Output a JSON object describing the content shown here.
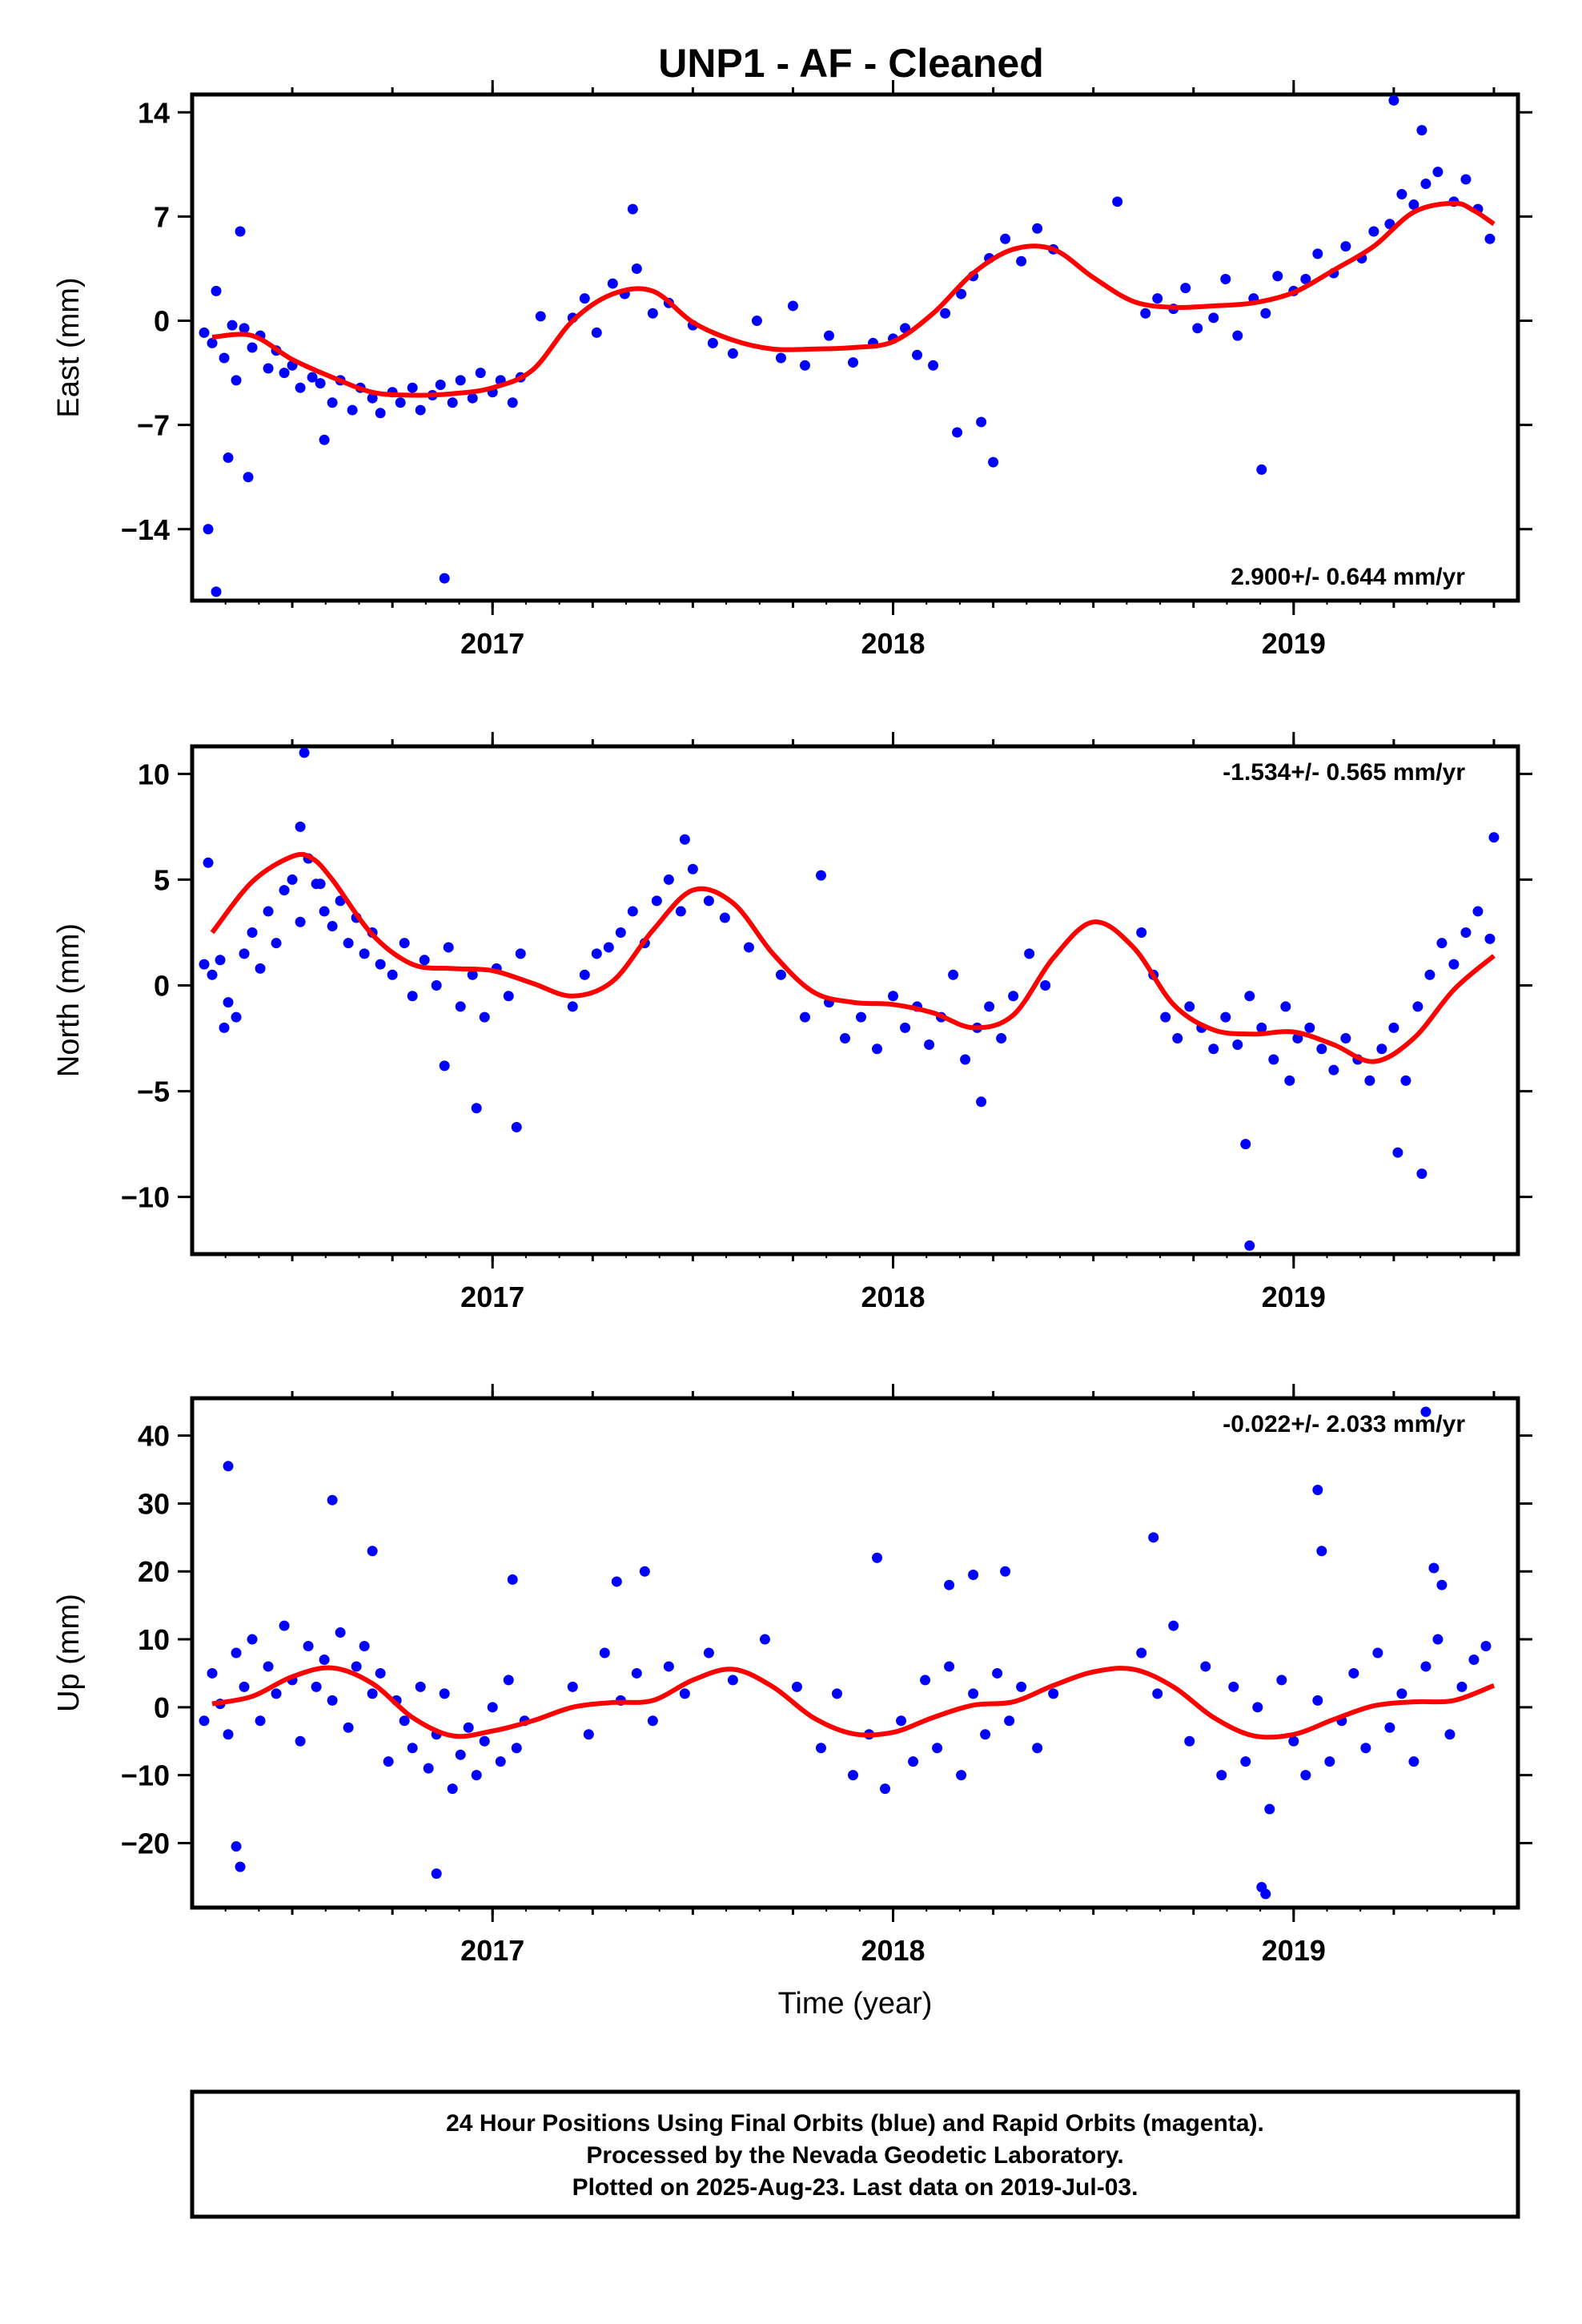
{
  "title": "UNP1  - AF - Cleaned",
  "footer": {
    "lines": [
      "24 Hour Positions Using Final Orbits (blue) and Rapid Orbits (magenta).",
      "Processed by the Nevada Geodetic Laboratory.",
      "Plotted on 2025-Aug-23. Last data on 2019-Jul-03."
    ]
  },
  "colors": {
    "final_orbits": "#0000ff",
    "rapid_orbits": "#ff00ff",
    "model_fit": "#ff0000",
    "frame": "#000000"
  },
  "chart_data": [
    {
      "type": "scatter",
      "name": "east",
      "ylabel": "East (mm)",
      "xlabel": "",
      "xlim": [
        2016.25,
        2019.56
      ],
      "ylim": [
        -18.8,
        15.2
      ],
      "xticks": [
        "2017",
        "2018",
        "2019"
      ],
      "yticks": [
        14,
        7,
        0,
        -7,
        -14
      ],
      "ytick_labels": [
        "14",
        "7",
        "0",
        "−7",
        "−14"
      ],
      "rate_text": "2.900+/- 0.644 mm/yr",
      "rate_position": "bottom-right",
      "grid": false,
      "fit": {
        "x": [
          2016.3,
          2016.4,
          2016.5,
          2016.6,
          2016.7,
          2016.8,
          2016.9,
          2017.0,
          2017.1,
          2017.2,
          2017.3,
          2017.4,
          2017.5,
          2017.6,
          2017.7,
          2017.8,
          2017.9,
          2018.0,
          2018.1,
          2018.2,
          2018.3,
          2018.4,
          2018.5,
          2018.6,
          2018.7,
          2018.8,
          2018.9,
          2019.0,
          2019.1,
          2019.2,
          2019.3,
          2019.4,
          2019.45,
          2019.5
        ],
        "y": [
          -1.1,
          -1.0,
          -2.6,
          -3.8,
          -4.8,
          -5.0,
          -4.9,
          -4.5,
          -3.3,
          0.0,
          1.8,
          2.0,
          -0.1,
          -1.3,
          -1.9,
          -1.9,
          -1.8,
          -1.4,
          0.5,
          3.2,
          4.8,
          4.8,
          2.9,
          1.3,
          0.9,
          1.0,
          1.2,
          1.9,
          3.4,
          5.0,
          7.3,
          7.9,
          7.4,
          6.5
        ]
      },
      "points": {
        "x": [
          2016.28,
          2016.3,
          2016.31,
          2016.33,
          2016.35,
          2016.36,
          2016.38,
          2016.4,
          2016.42,
          2016.44,
          2016.46,
          2016.48,
          2016.5,
          2016.52,
          2016.55,
          2016.57,
          2016.6,
          2016.62,
          2016.65,
          2016.67,
          2016.7,
          2016.72,
          2016.75,
          2016.77,
          2016.8,
          2016.82,
          2016.85,
          2016.87,
          2016.9,
          2016.92,
          2016.95,
          2016.97,
          2017.0,
          2017.02,
          2017.05,
          2017.07,
          2017.2,
          2017.23,
          2017.26,
          2017.3,
          2017.33,
          2017.36,
          2017.4,
          2017.44,
          2017.5,
          2017.55,
          2017.6,
          2017.66,
          2017.72,
          2017.78,
          2017.84,
          2017.9,
          2017.95,
          2018.0,
          2018.03,
          2018.06,
          2018.1,
          2018.13,
          2018.17,
          2018.2,
          2018.24,
          2018.28,
          2018.32,
          2018.36,
          2018.4,
          2018.63,
          2018.66,
          2018.7,
          2018.73,
          2018.76,
          2018.8,
          2018.83,
          2018.86,
          2018.9,
          2018.93,
          2018.96,
          2019.0,
          2019.03,
          2019.06,
          2019.1,
          2019.13,
          2019.17,
          2019.2,
          2019.24,
          2019.27,
          2019.3,
          2019.33,
          2019.36,
          2019.4,
          2019.43,
          2019.46,
          2019.49,
          2016.29,
          2016.34,
          2016.37,
          2016.31,
          2016.39,
          2016.88,
          2017.35,
          2018.16,
          2018.25,
          2018.22,
          2018.92,
          2019.25,
          2019.32,
          2018.56,
          2016.58,
          2017.12,
          2017.75
        ],
        "y": [
          -0.8,
          -1.5,
          2.0,
          -2.5,
          -0.3,
          -4.0,
          -0.5,
          -1.8,
          -1.0,
          -3.2,
          -2.0,
          -3.5,
          -3.0,
          -4.5,
          -3.8,
          -4.2,
          -5.5,
          -4.0,
          -6.0,
          -4.5,
          -5.2,
          -6.2,
          -4.8,
          -5.5,
          -4.5,
          -6.0,
          -5.0,
          -4.3,
          -5.5,
          -4.0,
          -5.2,
          -3.5,
          -4.8,
          -4.0,
          -5.5,
          -3.8,
          0.2,
          1.5,
          -0.8,
          2.5,
          1.8,
          3.5,
          0.5,
          1.2,
          -0.3,
          -1.5,
          -2.2,
          0.0,
          -2.5,
          -3.0,
          -1.0,
          -2.8,
          -1.5,
          -1.2,
          -0.5,
          -2.3,
          -3.0,
          0.5,
          1.8,
          3.0,
          4.2,
          5.5,
          4.0,
          6.2,
          4.8,
          0.5,
          1.5,
          0.8,
          2.2,
          -0.5,
          0.2,
          2.8,
          -1.0,
          1.5,
          0.5,
          3.0,
          2.0,
          2.8,
          4.5,
          3.2,
          5.0,
          4.2,
          6.0,
          6.5,
          8.5,
          7.8,
          9.2,
          10.0,
          8.0,
          9.5,
          7.5,
          5.5,
          -14.0,
          -9.2,
          6.0,
          -18.2,
          -10.5,
          -17.3,
          7.5,
          -7.5,
          -9.5,
          -6.8,
          -10.0,
          14.8,
          12.8,
          8.0,
          -8.0,
          0.3,
          1.0
        ]
      }
    },
    {
      "type": "scatter",
      "name": "north",
      "ylabel": "North (mm)",
      "xlabel": "",
      "xlim": [
        2016.25,
        2019.56
      ],
      "ylim": [
        -12.7,
        11.3
      ],
      "xticks": [
        "2017",
        "2018",
        "2019"
      ],
      "yticks": [
        10,
        5,
        0,
        -5,
        -10
      ],
      "ytick_labels": [
        "10",
        "5",
        "0",
        "−5",
        "−10"
      ],
      "rate_text": "-1.534+/- 0.565 mm/yr",
      "rate_position": "top-right",
      "grid": false,
      "fit": {
        "x": [
          2016.3,
          2016.4,
          2016.5,
          2016.55,
          2016.6,
          2016.7,
          2016.8,
          2016.9,
          2017.0,
          2017.1,
          2017.2,
          2017.3,
          2017.4,
          2017.5,
          2017.6,
          2017.7,
          2017.8,
          2017.9,
          2018.0,
          2018.1,
          2018.2,
          2018.3,
          2018.4,
          2018.5,
          2018.6,
          2018.7,
          2018.8,
          2018.9,
          2019.0,
          2019.1,
          2019.2,
          2019.3,
          2019.4,
          2019.5
        ],
        "y": [
          2.5,
          4.9,
          6.1,
          6.0,
          5.0,
          2.4,
          1.0,
          0.8,
          0.7,
          0.1,
          -0.5,
          0.2,
          2.6,
          4.5,
          3.9,
          1.5,
          -0.3,
          -0.8,
          -0.9,
          -1.3,
          -2.0,
          -1.4,
          1.3,
          3.0,
          1.8,
          -0.9,
          -2.1,
          -2.3,
          -2.2,
          -2.8,
          -3.6,
          -2.5,
          -0.2,
          1.4
        ]
      },
      "points": {
        "x": [
          2016.28,
          2016.3,
          2016.32,
          2016.34,
          2016.36,
          2016.38,
          2016.4,
          2016.42,
          2016.44,
          2016.46,
          2016.48,
          2016.5,
          2016.52,
          2016.54,
          2016.56,
          2016.58,
          2016.6,
          2016.62,
          2016.64,
          2016.66,
          2016.68,
          2016.7,
          2016.72,
          2016.75,
          2016.78,
          2016.8,
          2016.83,
          2016.86,
          2016.89,
          2016.92,
          2016.95,
          2016.98,
          2017.01,
          2017.04,
          2017.07,
          2017.2,
          2017.23,
          2017.26,
          2017.29,
          2017.32,
          2017.35,
          2017.38,
          2017.41,
          2017.44,
          2017.47,
          2017.5,
          2017.54,
          2017.58,
          2017.64,
          2017.72,
          2017.78,
          2017.84,
          2017.88,
          2017.92,
          2017.96,
          2018.0,
          2018.03,
          2018.06,
          2018.09,
          2018.12,
          2018.15,
          2018.18,
          2018.21,
          2018.24,
          2018.27,
          2018.3,
          2018.34,
          2018.38,
          2018.62,
          2018.65,
          2018.68,
          2018.71,
          2018.74,
          2018.77,
          2018.8,
          2018.83,
          2018.86,
          2018.89,
          2018.92,
          2018.95,
          2018.98,
          2019.01,
          2019.04,
          2019.07,
          2019.1,
          2019.13,
          2019.16,
          2019.19,
          2019.22,
          2019.25,
          2019.28,
          2019.31,
          2019.34,
          2019.37,
          2019.4,
          2019.43,
          2019.46,
          2019.49,
          2016.29,
          2016.33,
          2016.52,
          2016.53,
          2016.88,
          2016.96,
          2017.06,
          2017.48,
          2017.82,
          2018.22,
          2018.88,
          2018.99,
          2019.26,
          2019.32,
          2019.5,
          2018.89,
          2016.57
        ],
        "y": [
          1.0,
          0.5,
          1.2,
          -0.8,
          -1.5,
          1.5,
          2.5,
          0.8,
          3.5,
          2.0,
          4.5,
          5.0,
          3.0,
          6.0,
          4.8,
          3.5,
          2.8,
          4.0,
          2.0,
          3.2,
          1.5,
          2.5,
          1.0,
          0.5,
          2.0,
          -0.5,
          1.2,
          0.0,
          1.8,
          -1.0,
          0.5,
          -1.5,
          0.8,
          -0.5,
          1.5,
          -1.0,
          0.5,
          1.5,
          1.8,
          2.5,
          3.5,
          2.0,
          4.0,
          5.0,
          3.5,
          5.5,
          4.0,
          3.2,
          1.8,
          0.5,
          -1.5,
          -0.8,
          -2.5,
          -1.5,
          -3.0,
          -0.5,
          -2.0,
          -1.0,
          -2.8,
          -1.5,
          0.5,
          -3.5,
          -2.0,
          -1.0,
          -2.5,
          -0.5,
          1.5,
          0.0,
          2.5,
          0.5,
          -1.5,
          -2.5,
          -1.0,
          -2.0,
          -3.0,
          -1.5,
          -2.8,
          -0.5,
          -2.0,
          -3.5,
          -1.0,
          -2.5,
          -2.0,
          -3.0,
          -4.0,
          -2.5,
          -3.5,
          -4.5,
          -3.0,
          -2.0,
          -4.5,
          -1.0,
          0.5,
          2.0,
          1.0,
          2.5,
          3.5,
          2.2,
          5.8,
          -2.0,
          7.5,
          11.0,
          -3.8,
          -5.8,
          -6.7,
          6.9,
          5.2,
          -5.5,
          -7.5,
          -4.5,
          -7.9,
          -8.9,
          7.0,
          -12.3,
          4.8
        ]
      }
    },
    {
      "type": "scatter",
      "name": "up",
      "ylabel": "Up (mm)",
      "xlabel": "Time (year)",
      "xlim": [
        2016.25,
        2019.56
      ],
      "ylim": [
        -29.5,
        45.5
      ],
      "xticks": [
        "2017",
        "2018",
        "2019"
      ],
      "yticks": [
        40,
        30,
        20,
        10,
        0,
        -10,
        -20
      ],
      "ytick_labels": [
        "40",
        "30",
        "20",
        "10",
        "0",
        "−10",
        "−20"
      ],
      "rate_text": "-0.022+/- 2.033 mm/yr",
      "rate_position": "top-right",
      "grid": false,
      "fit": {
        "x": [
          2016.3,
          2016.4,
          2016.5,
          2016.6,
          2016.7,
          2016.8,
          2016.9,
          2017.0,
          2017.1,
          2017.2,
          2017.3,
          2017.4,
          2017.5,
          2017.6,
          2017.7,
          2017.8,
          2017.9,
          2018.0,
          2018.1,
          2018.2,
          2018.3,
          2018.4,
          2018.5,
          2018.6,
          2018.7,
          2018.8,
          2018.9,
          2019.0,
          2019.1,
          2019.2,
          2019.3,
          2019.4,
          2019.5
        ],
        "y": [
          0.5,
          1.6,
          4.5,
          5.8,
          3.5,
          -1.5,
          -4.2,
          -3.5,
          -2.0,
          0.0,
          0.7,
          1.0,
          4.0,
          5.6,
          3.0,
          -1.5,
          -3.9,
          -3.7,
          -1.5,
          0.3,
          0.8,
          3.2,
          5.2,
          5.6,
          3.0,
          -1.5,
          -4.2,
          -4.0,
          -1.8,
          0.2,
          0.8,
          1.0,
          3.2
        ]
      },
      "points": {
        "x": [
          2016.28,
          2016.3,
          2016.32,
          2016.34,
          2016.36,
          2016.38,
          2016.4,
          2016.42,
          2016.44,
          2016.46,
          2016.48,
          2016.5,
          2016.52,
          2016.54,
          2016.56,
          2016.58,
          2016.6,
          2016.62,
          2016.64,
          2016.66,
          2016.68,
          2016.7,
          2016.72,
          2016.74,
          2016.76,
          2016.78,
          2016.8,
          2016.82,
          2016.84,
          2016.86,
          2016.88,
          2016.9,
          2016.92,
          2016.94,
          2016.96,
          2016.98,
          2017.0,
          2017.02,
          2017.04,
          2017.06,
          2017.08,
          2017.2,
          2017.24,
          2017.28,
          2017.32,
          2017.36,
          2017.4,
          2017.44,
          2017.48,
          2017.54,
          2017.6,
          2017.68,
          2017.76,
          2017.82,
          2017.86,
          2017.9,
          2017.94,
          2017.98,
          2018.02,
          2018.05,
          2018.08,
          2018.11,
          2018.14,
          2018.17,
          2018.2,
          2018.23,
          2018.26,
          2018.29,
          2018.32,
          2018.36,
          2018.4,
          2018.62,
          2018.66,
          2018.7,
          2018.74,
          2018.78,
          2018.82,
          2018.85,
          2018.88,
          2018.91,
          2018.94,
          2018.97,
          2019.0,
          2019.03,
          2019.06,
          2019.09,
          2019.12,
          2019.15,
          2019.18,
          2019.21,
          2019.24,
          2019.27,
          2019.3,
          2019.33,
          2019.36,
          2019.39,
          2019.42,
          2019.45,
          2019.48,
          2016.34,
          2016.36,
          2016.37,
          2016.6,
          2016.7,
          2016.86,
          2017.05,
          2017.31,
          2017.38,
          2017.96,
          2018.14,
          2018.2,
          2018.28,
          2018.65,
          2018.92,
          2018.93,
          2019.06,
          2019.07,
          2019.35,
          2019.37,
          2019.33
        ],
        "y": [
          -2.0,
          5.0,
          0.5,
          -4.0,
          8.0,
          3.0,
          10.0,
          -2.0,
          6.0,
          2.0,
          12.0,
          4.0,
          -5.0,
          9.0,
          3.0,
          7.0,
          1.0,
          11.0,
          -3.0,
          6.0,
          9.0,
          2.0,
          5.0,
          -8.0,
          1.0,
          -2.0,
          -6.0,
          3.0,
          -9.0,
          -4.0,
          2.0,
          -12.0,
          -7.0,
          -3.0,
          -10.0,
          -5.0,
          0.0,
          -8.0,
          4.0,
          -6.0,
          -2.0,
          3.0,
          -4.0,
          8.0,
          1.0,
          5.0,
          -2.0,
          6.0,
          2.0,
          8.0,
          4.0,
          10.0,
          3.0,
          -6.0,
          2.0,
          -10.0,
          -4.0,
          -12.0,
          -2.0,
          -8.0,
          4.0,
          -6.0,
          6.0,
          -10.0,
          2.0,
          -4.0,
          5.0,
          -2.0,
          3.0,
          -6.0,
          2.0,
          8.0,
          2.0,
          12.0,
          -5.0,
          6.0,
          -10.0,
          3.0,
          -8.0,
          0.0,
          -15.0,
          4.0,
          -5.0,
          -10.0,
          1.0,
          -8.0,
          -2.0,
          5.0,
          -6.0,
          8.0,
          -3.0,
          2.0,
          -8.0,
          6.0,
          10.0,
          -4.0,
          3.0,
          7.0,
          9.0,
          35.5,
          -20.5,
          -23.5,
          30.5,
          23.0,
          -24.5,
          18.8,
          18.5,
          20.0,
          22.0,
          18.0,
          19.5,
          20.0,
          25.0,
          -26.5,
          -27.5,
          32.0,
          23.0,
          20.5,
          18.0,
          43.5
        ]
      }
    }
  ]
}
